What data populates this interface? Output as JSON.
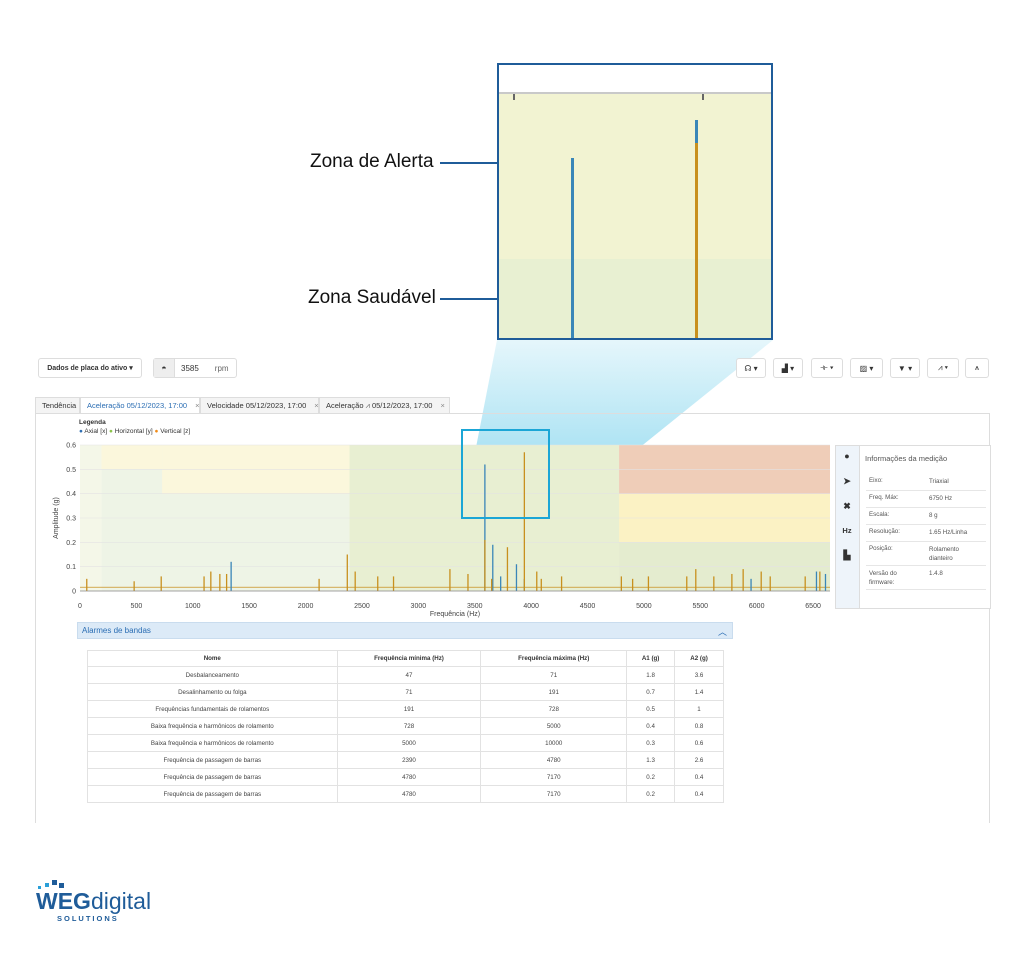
{
  "callouts": {
    "alert_zone": "Zona de Alerta",
    "healthy_zone": "Zona Saudável"
  },
  "toolbar": {
    "asset_data_button": "Dados de placa do ativo",
    "rpm_value": "3585",
    "rpm_unit": "rpm",
    "tool_icons": [
      "headset-icon",
      "sensor-icon",
      "harmonics-icon",
      "image-chart-icon",
      "filter-icon",
      "peaks-icon",
      "trend-icon"
    ]
  },
  "tabs": [
    {
      "label": "Tendência",
      "closable": false
    },
    {
      "label": "Aceleração 05/12/2023, 17:00",
      "closable": true,
      "active": true
    },
    {
      "label": "Velocidade 05/12/2023, 17:00",
      "closable": true
    },
    {
      "label": "Aceleração 05/12/2023, 17:00",
      "closable": true,
      "icon": "demodulation-icon"
    }
  ],
  "legend": {
    "title": "Legenda",
    "items": [
      {
        "name": "Axial [x]",
        "color": "#2f6fb3"
      },
      {
        "name": "Horizontal [y]",
        "color": "#8bc34a"
      },
      {
        "name": "Vertical [z]",
        "color": "#f08c1a"
      }
    ]
  },
  "chart_data": {
    "type": "line",
    "xlabel": "Frequência (Hz)",
    "ylabel": "Amplitude (g)",
    "xlim": [
      0,
      6650
    ],
    "ylim": [
      0,
      0.6
    ],
    "xticks": [
      "0",
      "500",
      "1000",
      "1500",
      "2000",
      "2500",
      "3000",
      "3500",
      "4000",
      "4500",
      "5000",
      "5500",
      "6000",
      "6500"
    ],
    "yticks": [
      "0",
      "0.1",
      "0.2",
      "0.3",
      "0.4",
      "0.5",
      "0.6"
    ],
    "alarm_zones": [
      {
        "x": [
          47,
          71
        ],
        "alert": 1.8,
        "danger": 3.6
      },
      {
        "x": [
          71,
          191
        ],
        "alert": 0.7,
        "danger": 1.4
      },
      {
        "x": [
          191,
          728
        ],
        "alert": 0.5,
        "danger": 1
      },
      {
        "x": [
          728,
          5000
        ],
        "alert": 0.4,
        "danger": 0.8
      },
      {
        "x": [
          2390,
          4780
        ],
        "alert": 1.3,
        "danger": 2.6
      },
      {
        "x": [
          4780,
          7170
        ],
        "alert": 0.2,
        "danger": 0.4
      }
    ],
    "peaks": [
      {
        "series": "Axial [x]",
        "x": [
          1340,
          3590,
          3660,
          3730,
          3870,
          3940,
          5950,
          6530,
          6610
        ],
        "y": [
          0.12,
          0.52,
          0.19,
          0.06,
          0.11,
          0.05,
          0.05,
          0.08,
          0.07
        ]
      },
      {
        "series": "Vertical [z]",
        "x": [
          60,
          480,
          720,
          1100,
          1160,
          1240,
          1300,
          2120,
          2370,
          2440,
          2640,
          2780,
          3280,
          3440,
          3590,
          3650,
          3790,
          3940,
          4050,
          4090,
          4270,
          4800,
          4900,
          5040,
          5380,
          5460,
          5620,
          5780,
          5880,
          6040,
          6120,
          6430,
          6560
        ],
        "y": [
          0.05,
          0.04,
          0.06,
          0.06,
          0.08,
          0.07,
          0.07,
          0.05,
          0.15,
          0.08,
          0.06,
          0.06,
          0.09,
          0.07,
          0.21,
          0.05,
          0.18,
          0.57,
          0.08,
          0.05,
          0.06,
          0.06,
          0.05,
          0.06,
          0.06,
          0.09,
          0.06,
          0.07,
          0.09,
          0.08,
          0.06,
          0.06,
          0.08
        ]
      }
    ]
  },
  "info": {
    "title": "Informações da medição",
    "rows": [
      {
        "k": "Eixo:",
        "v": "Triaxial"
      },
      {
        "k": "Freq. Máx:",
        "v": "6750 Hz"
      },
      {
        "k": "Escala:",
        "v": "8 g"
      },
      {
        "k": "Resolução:",
        "v": "1.65 Hz/Linha"
      },
      {
        "k": "Posição:",
        "v": "Rolamento dianteiro"
      },
      {
        "k": "Versão do firmware:",
        "v": "1.4.8"
      }
    ],
    "side_icons": [
      "info-icon",
      "cursor-icon",
      "tools-icon",
      "hz-icon",
      "chart-icon"
    ],
    "hz_label": "Hz"
  },
  "alarms": {
    "title": "Alarmes de bandas",
    "columns": [
      "Nome",
      "Frequência mínima (Hz)",
      "Frequência máxima (Hz)",
      "A1 (g)",
      "A2 (g)"
    ],
    "rows": [
      [
        "Desbalanceamento",
        "47",
        "71",
        "1.8",
        "3.6"
      ],
      [
        "Desalinhamento ou folga",
        "71",
        "191",
        "0.7",
        "1.4"
      ],
      [
        "Frequências fundamentais de rolamentos",
        "191",
        "728",
        "0.5",
        "1"
      ],
      [
        "Baixa frequência e harmônicos de rolamento",
        "728",
        "5000",
        "0.4",
        "0.8"
      ],
      [
        "Baixa frequência e harmônicos de rolamento",
        "5000",
        "10000",
        "0.3",
        "0.6"
      ],
      [
        "Frequência de passagem de barras",
        "2390",
        "4780",
        "1.3",
        "2.6"
      ],
      [
        "Frequência de passagem de barras",
        "4780",
        "7170",
        "0.2",
        "0.4"
      ],
      [
        "Frequência de passagem de barras",
        "4780",
        "7170",
        "0.2",
        "0.4"
      ]
    ]
  },
  "logo": {
    "brand": "WEG",
    "suffix": "digital",
    "tagline": "SOLUTIONS",
    "color": "#1f5c99"
  }
}
